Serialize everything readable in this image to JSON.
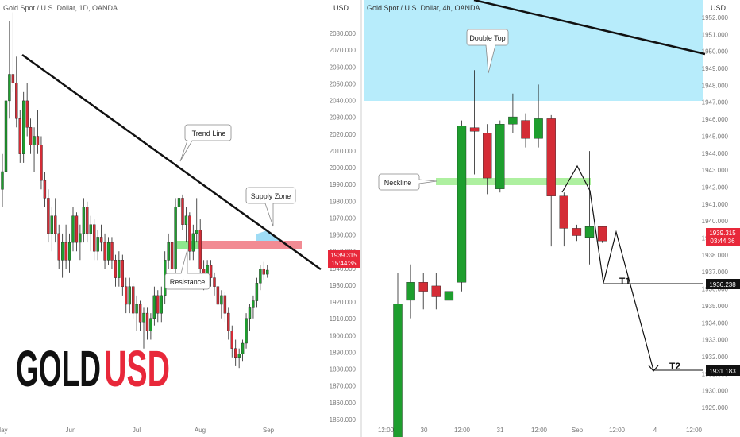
{
  "left_panel": {
    "title": "Gold Spot / U.S. Dollar, 1D, OANDA",
    "currency": "USD",
    "price_tag": "1939.315",
    "countdown": "15:44:35",
    "ylabels": [
      "2080.000",
      "2070.000",
      "2060.000",
      "2050.000",
      "2040.000",
      "2030.000",
      "2020.000",
      "2010.000",
      "2000.000",
      "1990.000",
      "1980.000",
      "1970.000",
      "1960.000",
      "1950.000",
      "1940.000",
      "1930.000",
      "1920.000",
      "1910.000",
      "1900.000",
      "1890.000",
      "1880.000",
      "1870.000",
      "1860.000",
      "1850.000"
    ],
    "xlabels": [
      "May",
      "Jun",
      "Jul",
      "Aug",
      "Sep"
    ],
    "annotations": {
      "trend_line": "Trend Line",
      "supply_zone": "Supply Zone",
      "resistance": "Resistance"
    },
    "brand": {
      "part1": "GOLD",
      "part2": "USD"
    }
  },
  "right_panel": {
    "title": "Gold Spot / U.S. Dollar, 4h, OANDA",
    "currency": "USD",
    "price_tag": "1939.315",
    "countdown": "03:44:36",
    "target1_price": "1936.238",
    "target2_price": "1931.183",
    "ylabels": [
      "1952.000",
      "1951.000",
      "1950.000",
      "1949.000",
      "1948.000",
      "1947.000",
      "1946.000",
      "1945.000",
      "1944.000",
      "1943.000",
      "1942.000",
      "1941.000",
      "1940.000",
      "1939.000",
      "1938.000",
      "1937.000",
      "1936.000",
      "1935.000",
      "1934.000",
      "1933.000",
      "1932.000",
      "1931.000",
      "1930.000",
      "1929.000"
    ],
    "xlabels": [
      "12:00",
      "30",
      "12:00",
      "31",
      "12:00",
      "Sep",
      "12:00",
      "4",
      "12:00"
    ],
    "annotations": {
      "double_top": "Double Top",
      "neckline": "Neckline",
      "t1": "T1",
      "t2": "T2"
    }
  },
  "chart_data": [
    {
      "type": "candlestick",
      "title": "Gold Spot / U.S. Dollar, 1D, OANDA",
      "ylim": [
        1845,
        2092
      ],
      "x_ticks": [
        "May",
        "Jun",
        "Jul",
        "Aug",
        "Sep"
      ],
      "colors": {
        "up": "#1e9e2e",
        "down": "#d42c36",
        "supply_zone": "#f28b93",
        "resistance_zone": "#8ee88e"
      },
      "candles": [
        {
          "o": 1985,
          "h": 2005,
          "l": 1975,
          "c": 1995
        },
        {
          "o": 1995,
          "h": 2040,
          "l": 1990,
          "c": 2035
        },
        {
          "o": 2035,
          "h": 2080,
          "l": 2025,
          "c": 2050
        },
        {
          "o": 2050,
          "h": 2085,
          "l": 2040,
          "c": 2045
        },
        {
          "o": 2045,
          "h": 2060,
          "l": 2020,
          "c": 2025
        },
        {
          "o": 2025,
          "h": 2030,
          "l": 2000,
          "c": 2005
        },
        {
          "o": 2005,
          "h": 2040,
          "l": 2000,
          "c": 2035
        },
        {
          "o": 2035,
          "h": 2045,
          "l": 2015,
          "c": 2020
        },
        {
          "o": 2020,
          "h": 2025,
          "l": 2005,
          "c": 2010
        },
        {
          "o": 2010,
          "h": 2020,
          "l": 1995,
          "c": 2015
        },
        {
          "o": 2015,
          "h": 2030,
          "l": 2005,
          "c": 2010
        },
        {
          "o": 2010,
          "h": 2015,
          "l": 1985,
          "c": 1990
        },
        {
          "o": 1990,
          "h": 1995,
          "l": 1975,
          "c": 1980
        },
        {
          "o": 1980,
          "h": 1985,
          "l": 1955,
          "c": 1960
        },
        {
          "o": 1960,
          "h": 1975,
          "l": 1950,
          "c": 1970
        },
        {
          "o": 1970,
          "h": 1980,
          "l": 1955,
          "c": 1960
        },
        {
          "o": 1960,
          "h": 1965,
          "l": 1940,
          "c": 1945
        },
        {
          "o": 1945,
          "h": 1960,
          "l": 1935,
          "c": 1955
        },
        {
          "o": 1955,
          "h": 1965,
          "l": 1940,
          "c": 1945
        },
        {
          "o": 1945,
          "h": 1960,
          "l": 1938,
          "c": 1955
        },
        {
          "o": 1955,
          "h": 1975,
          "l": 1950,
          "c": 1970
        },
        {
          "o": 1970,
          "h": 1972,
          "l": 1950,
          "c": 1955
        },
        {
          "o": 1955,
          "h": 1965,
          "l": 1945,
          "c": 1960
        },
        {
          "o": 1960,
          "h": 1980,
          "l": 1955,
          "c": 1975
        },
        {
          "o": 1975,
          "h": 1978,
          "l": 1955,
          "c": 1960
        },
        {
          "o": 1960,
          "h": 1970,
          "l": 1950,
          "c": 1965
        },
        {
          "o": 1965,
          "h": 1968,
          "l": 1945,
          "c": 1950
        },
        {
          "o": 1950,
          "h": 1962,
          "l": 1945,
          "c": 1958
        },
        {
          "o": 1958,
          "h": 1965,
          "l": 1950,
          "c": 1955
        },
        {
          "o": 1955,
          "h": 1960,
          "l": 1940,
          "c": 1945
        },
        {
          "o": 1945,
          "h": 1958,
          "l": 1942,
          "c": 1955
        },
        {
          "o": 1955,
          "h": 1958,
          "l": 1940,
          "c": 1945
        },
        {
          "o": 1945,
          "h": 1948,
          "l": 1930,
          "c": 1935
        },
        {
          "o": 1935,
          "h": 1950,
          "l": 1930,
          "c": 1945
        },
        {
          "o": 1945,
          "h": 1948,
          "l": 1925,
          "c": 1930
        },
        {
          "o": 1930,
          "h": 1935,
          "l": 1915,
          "c": 1920
        },
        {
          "o": 1920,
          "h": 1935,
          "l": 1915,
          "c": 1930
        },
        {
          "o": 1930,
          "h": 1932,
          "l": 1912,
          "c": 1915
        },
        {
          "o": 1915,
          "h": 1925,
          "l": 1905,
          "c": 1920
        },
        {
          "o": 1920,
          "h": 1922,
          "l": 1905,
          "c": 1910
        },
        {
          "o": 1910,
          "h": 1918,
          "l": 1895,
          "c": 1915
        },
        {
          "o": 1915,
          "h": 1918,
          "l": 1900,
          "c": 1905
        },
        {
          "o": 1905,
          "h": 1915,
          "l": 1900,
          "c": 1912
        },
        {
          "o": 1912,
          "h": 1930,
          "l": 1908,
          "c": 1925
        },
        {
          "o": 1925,
          "h": 1928,
          "l": 1910,
          "c": 1915
        },
        {
          "o": 1915,
          "h": 1930,
          "l": 1910,
          "c": 1925
        },
        {
          "o": 1925,
          "h": 1950,
          "l": 1920,
          "c": 1945
        },
        {
          "o": 1945,
          "h": 1960,
          "l": 1940,
          "c": 1955
        },
        {
          "o": 1955,
          "h": 1958,
          "l": 1935,
          "c": 1940
        },
        {
          "o": 1940,
          "h": 1980,
          "l": 1935,
          "c": 1975
        },
        {
          "o": 1975,
          "h": 1985,
          "l": 1968,
          "c": 1980
        },
        {
          "o": 1980,
          "h": 1982,
          "l": 1962,
          "c": 1965
        },
        {
          "o": 1965,
          "h": 1975,
          "l": 1955,
          "c": 1970
        },
        {
          "o": 1970,
          "h": 1972,
          "l": 1945,
          "c": 1950
        },
        {
          "o": 1950,
          "h": 1965,
          "l": 1945,
          "c": 1960
        },
        {
          "o": 1960,
          "h": 1980,
          "l": 1955,
          "c": 1962
        },
        {
          "o": 1962,
          "h": 1968,
          "l": 1935,
          "c": 1940
        },
        {
          "o": 1940,
          "h": 1945,
          "l": 1928,
          "c": 1932
        },
        {
          "o": 1932,
          "h": 1945,
          "l": 1930,
          "c": 1942
        },
        {
          "o": 1942,
          "h": 1945,
          "l": 1930,
          "c": 1935
        },
        {
          "o": 1935,
          "h": 1938,
          "l": 1925,
          "c": 1930
        },
        {
          "o": 1930,
          "h": 1933,
          "l": 1915,
          "c": 1920
        },
        {
          "o": 1920,
          "h": 1928,
          "l": 1912,
          "c": 1925
        },
        {
          "o": 1925,
          "h": 1927,
          "l": 1910,
          "c": 1915
        },
        {
          "o": 1915,
          "h": 1918,
          "l": 1900,
          "c": 1905
        },
        {
          "o": 1905,
          "h": 1908,
          "l": 1890,
          "c": 1895
        },
        {
          "o": 1895,
          "h": 1900,
          "l": 1885,
          "c": 1890
        },
        {
          "o": 1890,
          "h": 1895,
          "l": 1884,
          "c": 1892
        },
        {
          "o": 1892,
          "h": 1900,
          "l": 1888,
          "c": 1898
        },
        {
          "o": 1898,
          "h": 1915,
          "l": 1895,
          "c": 1912
        },
        {
          "o": 1912,
          "h": 1920,
          "l": 1905,
          "c": 1918
        },
        {
          "o": 1918,
          "h": 1925,
          "l": 1912,
          "c": 1922
        },
        {
          "o": 1922,
          "h": 1935,
          "l": 1918,
          "c": 1932
        },
        {
          "o": 1932,
          "h": 1942,
          "l": 1928,
          "c": 1940
        },
        {
          "o": 1940,
          "h": 1944,
          "l": 1934,
          "c": 1937
        },
        {
          "o": 1937,
          "h": 1942,
          "l": 1935,
          "c": 1939.3
        }
      ]
    },
    {
      "type": "candlestick",
      "title": "Gold Spot / U.S. Dollar, 4h, OANDA",
      "ylim": [
        1928.4,
        1952.7
      ],
      "x_ticks": [
        "12:00",
        "30",
        "12:00",
        "31",
        "12:00",
        "Sep",
        "12:00",
        "4",
        "12:00"
      ],
      "colors": {
        "up": "#1e9e2e",
        "down": "#d42c36",
        "supply_zone": "#b7ecfb",
        "neckline": "#aef0a0"
      },
      "candles": [
        {
          "o": 1927.5,
          "h": 1937.5,
          "l": 1927.5,
          "c": 1935.8
        },
        {
          "o": 1936.0,
          "h": 1938.0,
          "l": 1935.0,
          "c": 1937.0
        },
        {
          "o": 1937.0,
          "h": 1937.5,
          "l": 1935.5,
          "c": 1936.5
        },
        {
          "o": 1936.8,
          "h": 1937.5,
          "l": 1935.5,
          "c": 1936.2
        },
        {
          "o": 1936.0,
          "h": 1937.0,
          "l": 1935.0,
          "c": 1936.5
        },
        {
          "o": 1937.0,
          "h": 1946.0,
          "l": 1936.5,
          "c": 1945.7
        },
        {
          "o": 1945.6,
          "h": 1948.8,
          "l": 1943.0,
          "c": 1945.4
        },
        {
          "o": 1945.3,
          "h": 1945.8,
          "l": 1941.9,
          "c": 1942.8
        },
        {
          "o": 1942.2,
          "h": 1946.0,
          "l": 1942.0,
          "c": 1945.8
        },
        {
          "o": 1945.8,
          "h": 1947.5,
          "l": 1945.3,
          "c": 1946.2
        },
        {
          "o": 1946.0,
          "h": 1946.4,
          "l": 1944.5,
          "c": 1945.0
        },
        {
          "o": 1945.0,
          "h": 1948.0,
          "l": 1944.5,
          "c": 1946.1
        },
        {
          "o": 1946.1,
          "h": 1946.3,
          "l": 1939.0,
          "c": 1941.8
        },
        {
          "o": 1941.8,
          "h": 1942.0,
          "l": 1939.0,
          "c": 1940.0
        },
        {
          "o": 1940.0,
          "h": 1940.2,
          "l": 1939.3,
          "c": 1939.6
        },
        {
          "o": 1939.5,
          "h": 1944.3,
          "l": 1938.0,
          "c": 1940.1
        },
        {
          "o": 1940.1,
          "h": 1940.1,
          "l": 1939.2,
          "c": 1939.3
        }
      ],
      "levels": {
        "neckline": 1942.1,
        "target1": 1936.238,
        "target2": 1931.183
      }
    }
  ]
}
